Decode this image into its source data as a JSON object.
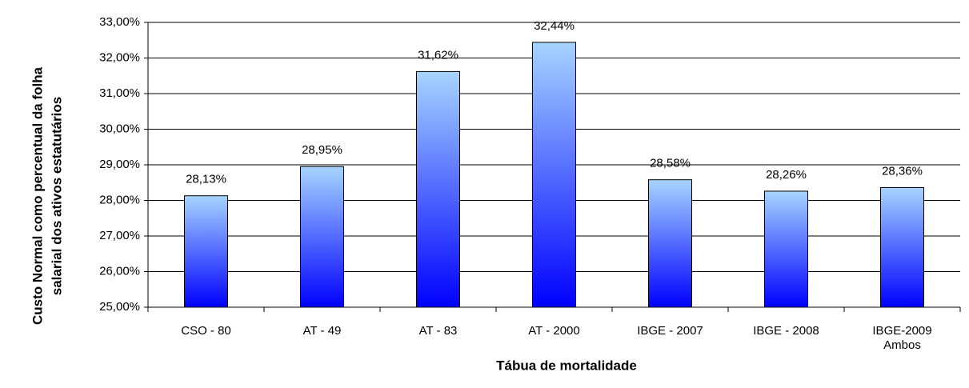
{
  "chart_data": {
    "type": "bar",
    "y_label": [
      "Custo Normal como percentual da folha",
      "salarial dos ativos estatutários"
    ],
    "x_label": "Tábua de mortalidade",
    "categories": [
      "CSO - 80",
      "AT - 49",
      "AT - 83",
      "AT - 2000",
      "IBGE - 2007",
      "IBGE - 2008",
      "IBGE-2009\nAmbos"
    ],
    "values": [
      28.13,
      28.95,
      31.62,
      32.44,
      28.58,
      28.26,
      28.36
    ],
    "value_labels": [
      "28,13%",
      "28,95%",
      "31,62%",
      "32,44%",
      "28,58%",
      "28,26%",
      "28,36%"
    ],
    "color": [
      "#a6d4ff",
      "#0000ff"
    ],
    "ylim": [
      25,
      33
    ],
    "yticks": [
      {
        "value": 25,
        "label": "25,00%"
      },
      {
        "value": 26,
        "label": "26,00%"
      },
      {
        "value": 27,
        "label": "27,00%"
      },
      {
        "value": 28,
        "label": "28,00%"
      },
      {
        "value": 29,
        "label": "29,00%"
      },
      {
        "value": 30,
        "label": "30,00%"
      },
      {
        "value": 31,
        "label": "31,00%"
      },
      {
        "value": 32,
        "label": "32,00%"
      },
      {
        "value": 33,
        "label": "33,00%"
      }
    ],
    "grid": true
  }
}
